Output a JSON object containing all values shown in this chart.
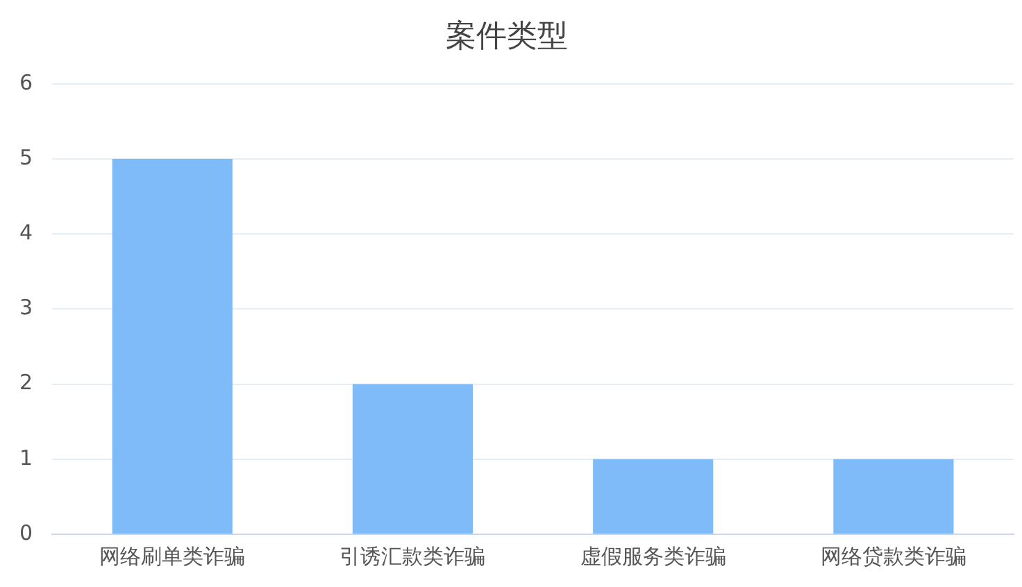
{
  "chart_data": {
    "type": "bar",
    "title": "案件类型",
    "categories": [
      "网络刷单类诈骗",
      "引诱汇款类诈骗",
      "虚假服务类诈骗",
      "网络贷款类诈骗"
    ],
    "values": [
      5,
      2,
      1,
      1
    ],
    "color": "#7fbaf9",
    "ylim": [
      0,
      6
    ],
    "yticks": [
      0,
      1,
      2,
      3,
      4,
      5,
      6
    ],
    "grid": "y"
  }
}
